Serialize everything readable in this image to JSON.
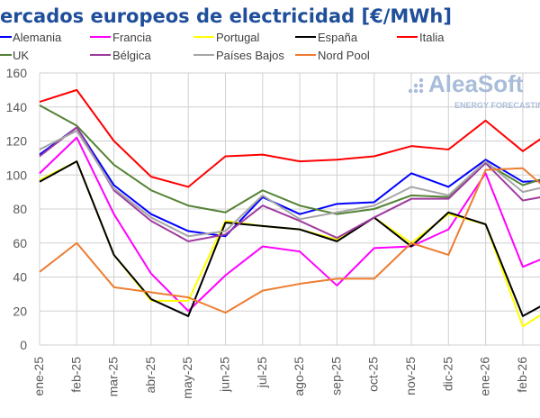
{
  "chart_data": {
    "type": "line",
    "title": "ercados europeos de electricidad [€/MWh]",
    "xlabel": "",
    "ylabel": "",
    "ylim": [
      0,
      160
    ],
    "yticks": [
      0,
      20,
      40,
      60,
      80,
      100,
      120,
      140,
      160
    ],
    "grid": true,
    "legend_placement": "top",
    "categories": [
      "ene-25",
      "feb-25",
      "mar-25",
      "abr-25",
      "may-25",
      "jun-25",
      "jul-25",
      "ago-25",
      "sep-25",
      "oct-25",
      "nov-25",
      "dic-25",
      "ene-26",
      "feb-26",
      "mar-26"
    ],
    "series": [
      {
        "name": "Alemania",
        "color": "#0000ff",
        "values": [
          112,
          128,
          94,
          77,
          67,
          64,
          87,
          77,
          83,
          84,
          101,
          93,
          109,
          96,
          97
        ]
      },
      {
        "name": "Francia",
        "color": "#ff00ff",
        "values": [
          101,
          122,
          77,
          42,
          20,
          41,
          58,
          55,
          35,
          57,
          58,
          68,
          101,
          46,
          55
        ]
      },
      {
        "name": "Portugal",
        "color": "#ffff00",
        "values": [
          97,
          108,
          53,
          26,
          26,
          73,
          70,
          68,
          62,
          75,
          60,
          77,
          71,
          11,
          25
        ]
      },
      {
        "name": "España",
        "color": "#000000",
        "values": [
          96,
          108,
          53,
          27,
          17,
          72,
          70,
          68,
          61,
          75,
          58,
          78,
          71,
          17,
          29
        ]
      },
      {
        "name": "Italia",
        "color": "#ff0000",
        "values": [
          143,
          150,
          120,
          99,
          93,
          111,
          112,
          108,
          109,
          111,
          117,
          115,
          132,
          114,
          129
        ]
      },
      {
        "name": "UK",
        "color": "#548235",
        "values": [
          141,
          129,
          106,
          91,
          82,
          78,
          91,
          82,
          77,
          80,
          88,
          87,
          107,
          94,
          101
        ]
      },
      {
        "name": "Bélgica",
        "color": "#9e3b9e",
        "values": [
          111,
          128,
          91,
          73,
          61,
          65,
          82,
          73,
          63,
          75,
          86,
          86,
          107,
          85,
          89
        ]
      },
      {
        "name": "Países Bajos",
        "color": "#a6a6a6",
        "values": [
          115,
          126,
          92,
          75,
          64,
          67,
          88,
          74,
          78,
          82,
          93,
          88,
          108,
          90,
          95
        ]
      },
      {
        "name": "Nord Pool",
        "color": "#ed7d31",
        "values": [
          43,
          60,
          34,
          31,
          28,
          19,
          32,
          36,
          39,
          39,
          60,
          53,
          103,
          104,
          85
        ]
      }
    ]
  },
  "watermark": {
    "brand": "AleaSoft",
    "tagline": "ENERGY FORECASTING"
  }
}
